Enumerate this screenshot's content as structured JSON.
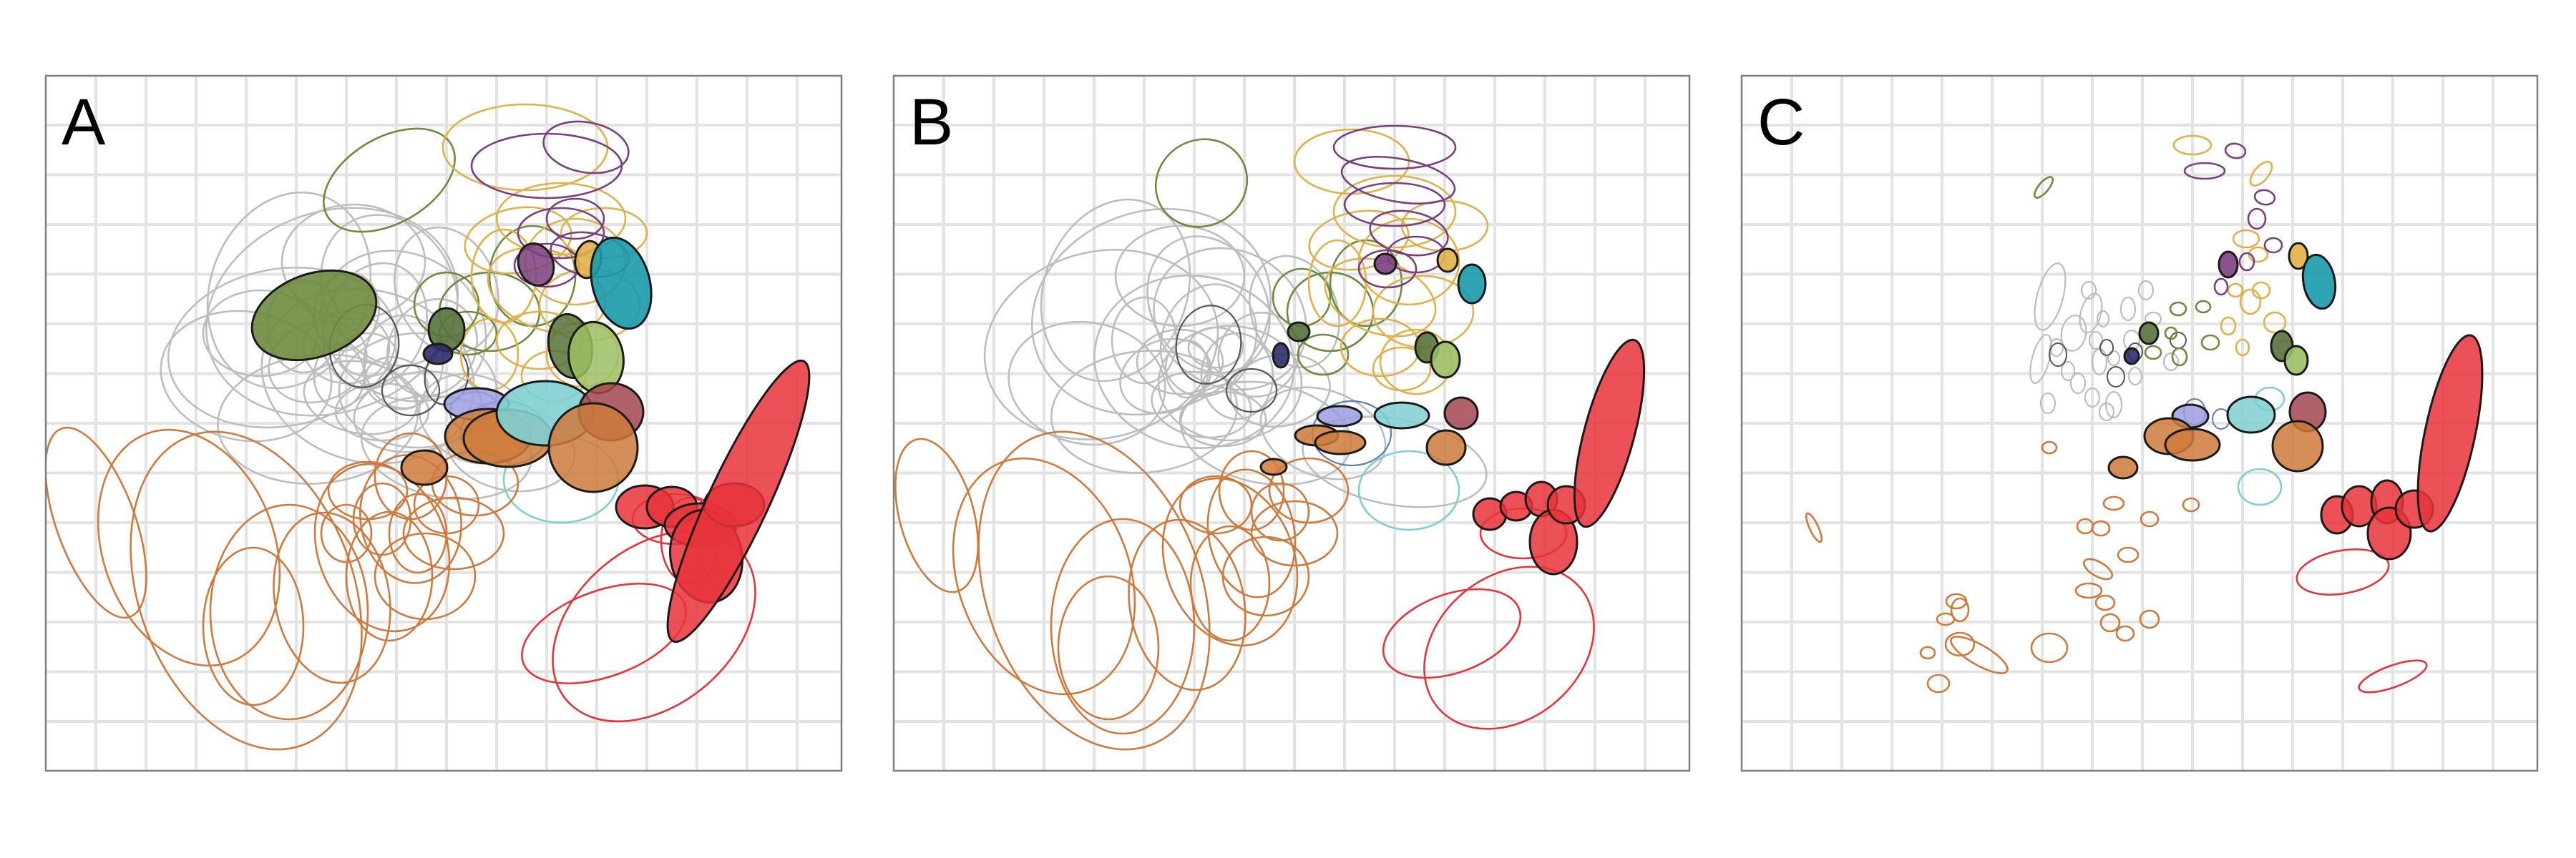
{
  "panels": [
    {
      "label": "A"
    },
    {
      "label": "B"
    },
    {
      "label": "C"
    }
  ],
  "colors": {
    "grey": "#bdbdbd",
    "olive": "#6e8a3e",
    "orange": "#cf7a3c",
    "red": "#e8333a",
    "purple": "#7b3f7f",
    "gold": "#e2b04a",
    "teal": "#1a9aab",
    "lightteal": "#7fcfd0",
    "navy": "#2d2d6b",
    "lavender": "#9c9ee0",
    "maroon": "#a3454f",
    "darkolive": "#56723a",
    "lightolive": "#9cbf63",
    "steelblue": "#5a7fae"
  },
  "icons": {
    "panel_shape": "ellipse"
  }
}
